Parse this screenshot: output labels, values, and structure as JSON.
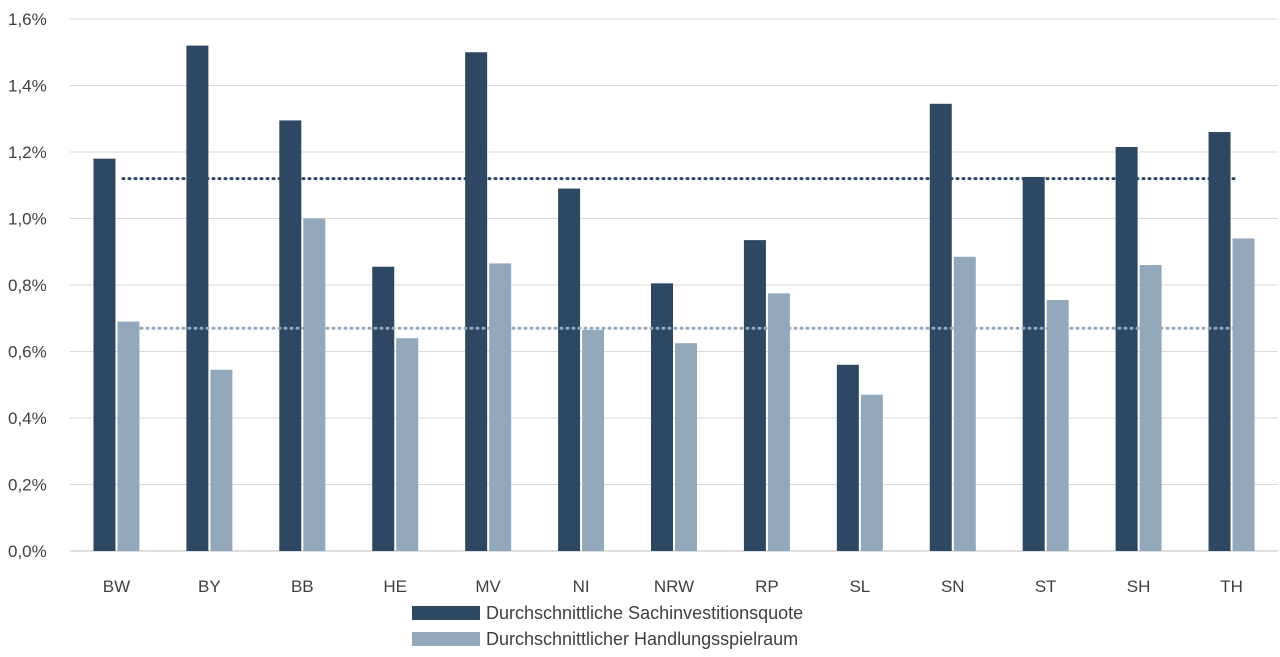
{
  "chart_data": {
    "type": "bar",
    "categories": [
      "BW",
      "BY",
      "BB",
      "HE",
      "MV",
      "NI",
      "NRW",
      "RP",
      "SL",
      "SN",
      "ST",
      "SH",
      "TH"
    ],
    "series": [
      {
        "name": "Durchschnittliche Sachinvestitionsquote",
        "color": "#2e4863",
        "values": [
          1.18,
          1.52,
          1.295,
          0.855,
          1.5,
          1.09,
          0.805,
          0.935,
          0.56,
          1.345,
          1.125,
          1.215,
          1.26
        ]
      },
      {
        "name": "Durchschnittlicher Handlungsspielraum",
        "color": "#94a8bc",
        "values": [
          0.69,
          0.545,
          1.0,
          0.64,
          0.865,
          0.665,
          0.625,
          0.775,
          0.47,
          0.885,
          0.755,
          0.86,
          0.94
        ]
      }
    ],
    "reference_lines": [
      {
        "value": 1.12,
        "color": "#2e4863",
        "style": "dotted"
      },
      {
        "value": 0.67,
        "color": "#94a8bc",
        "style": "dotted"
      }
    ],
    "y_ticks": [
      "0,0%",
      "0,2%",
      "0,4%",
      "0,6%",
      "0,8%",
      "1,0%",
      "1,2%",
      "1,4%",
      "1,6%"
    ],
    "ylim": [
      0,
      1.6
    ],
    "grid": true,
    "legend_position": "bottom"
  }
}
